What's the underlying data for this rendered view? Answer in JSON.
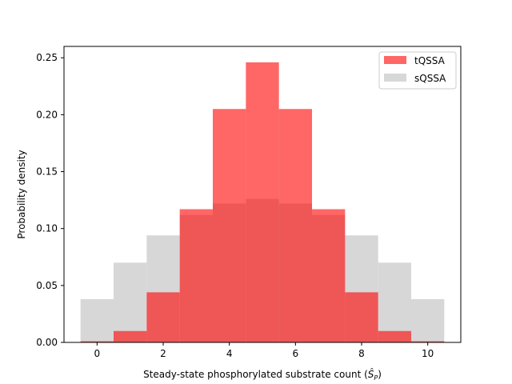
{
  "chart_data": {
    "type": "bar",
    "xlabel": "Steady-state phosphorylated substrate count (",
    "xlabel_symbol": "Ŝ",
    "xlabel_sub": "P",
    "xlabel_close": ")",
    "ylabel": "Probability density",
    "xlim": [
      -1,
      11
    ],
    "ylim": [
      0,
      0.26
    ],
    "xticks": [
      0,
      2,
      4,
      6,
      8,
      10
    ],
    "xtick_labels": [
      "0",
      "2",
      "4",
      "6",
      "8",
      "10"
    ],
    "yticks": [
      0.0,
      0.05,
      0.1,
      0.15,
      0.2,
      0.25
    ],
    "ytick_labels": [
      "0.00",
      "0.05",
      "0.10",
      "0.15",
      "0.20",
      "0.25"
    ],
    "categories": [
      0,
      1,
      2,
      3,
      4,
      5,
      6,
      7,
      8,
      9,
      10
    ],
    "bin_width": 1,
    "legend_position": "top-right",
    "series": [
      {
        "name": "sQSSA",
        "color": "#d3d3d3",
        "opacity": 0.9,
        "values": [
          0.038,
          0.07,
          0.094,
          0.112,
          0.122,
          0.126,
          0.122,
          0.112,
          0.094,
          0.07,
          0.038
        ]
      },
      {
        "name": "tQSSA",
        "color": "#ff0000",
        "opacity": 0.6,
        "values": [
          0.001,
          0.01,
          0.044,
          0.117,
          0.205,
          0.246,
          0.205,
          0.117,
          0.044,
          0.01,
          0.001
        ]
      }
    ],
    "legend_order": [
      "tQSSA",
      "sQSSA"
    ]
  }
}
